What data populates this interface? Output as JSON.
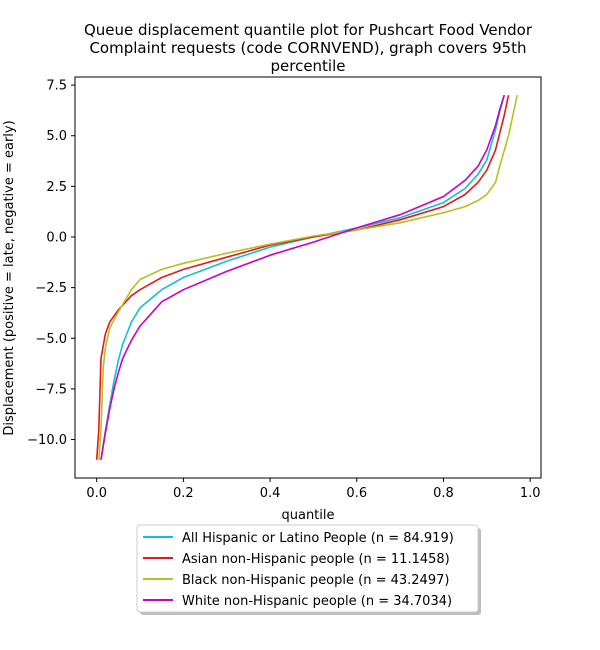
{
  "chart_data": {
    "type": "line",
    "title_lines": [
      "Queue displacement quantile plot for Pushcart Food Vendor",
      "Complaint  requests (code CORNVEND), graph covers 95th",
      "percentile"
    ],
    "xlabel": "quantile",
    "ylabel": "Displacement (positive = late, negative = early)",
    "xlim": [
      -0.05,
      1.025
    ],
    "ylim": [
      -11.9,
      7.9
    ],
    "x_ticks": [
      0.0,
      0.2,
      0.4,
      0.6,
      0.8,
      1.0
    ],
    "x_tick_labels": [
      "0.0",
      "0.2",
      "0.4",
      "0.6",
      "0.8",
      "1.0"
    ],
    "y_ticks": [
      -10.0,
      -7.5,
      -5.0,
      -2.5,
      0.0,
      2.5,
      5.0,
      7.5
    ],
    "y_tick_labels": [
      "−10.0",
      "−7.5",
      "−5.0",
      "−2.5",
      "0.0",
      "2.5",
      "5.0",
      "7.5"
    ],
    "grid": false,
    "legend_position": "below",
    "series": [
      {
        "name": "All Hispanic or Latino People (n = 84.919)",
        "color": "#17becf",
        "x": [
          0.01,
          0.02,
          0.03,
          0.04,
          0.05,
          0.06,
          0.08,
          0.1,
          0.15,
          0.2,
          0.3,
          0.4,
          0.5,
          0.6,
          0.7,
          0.8,
          0.85,
          0.88,
          0.9,
          0.92,
          0.93,
          0.94
        ],
        "y": [
          -11.0,
          -9.6,
          -8.3,
          -7.1,
          -6.1,
          -5.3,
          -4.2,
          -3.5,
          -2.6,
          -2.0,
          -1.2,
          -0.5,
          0.0,
          0.45,
          0.95,
          1.7,
          2.4,
          3.1,
          3.8,
          5.3,
          6.2,
          7.0
        ]
      },
      {
        "name": "Asian non-Hispanic people (n = 11.1458)",
        "color": "#e31a1c",
        "x": [
          0.0,
          0.005,
          0.01,
          0.02,
          0.03,
          0.05,
          0.08,
          0.1,
          0.15,
          0.2,
          0.3,
          0.4,
          0.5,
          0.6,
          0.7,
          0.8,
          0.85,
          0.88,
          0.9,
          0.92,
          0.94,
          0.95
        ],
        "y": [
          -11.0,
          -9.5,
          -6.0,
          -4.8,
          -4.2,
          -3.6,
          -2.9,
          -2.6,
          -2.0,
          -1.6,
          -1.0,
          -0.4,
          0.0,
          0.35,
          0.85,
          1.5,
          2.1,
          2.7,
          3.3,
          4.3,
          6.0,
          7.0
        ]
      },
      {
        "name": "Black non-Hispanic people (n = 43.2497)",
        "color": "#bcbd22",
        "x": [
          0.005,
          0.01,
          0.015,
          0.02,
          0.03,
          0.05,
          0.08,
          0.1,
          0.15,
          0.2,
          0.3,
          0.4,
          0.5,
          0.6,
          0.7,
          0.8,
          0.85,
          0.88,
          0.9,
          0.92,
          0.93,
          0.95,
          0.97
        ],
        "y": [
          -11.0,
          -9.5,
          -6.5,
          -5.5,
          -4.5,
          -3.7,
          -2.6,
          -2.1,
          -1.6,
          -1.3,
          -0.8,
          -0.35,
          0.05,
          0.35,
          0.7,
          1.2,
          1.5,
          1.8,
          2.1,
          2.7,
          3.5,
          5.0,
          7.0
        ]
      },
      {
        "name": "White non-Hispanic people (n = 34.7034)",
        "color": "#c800c8",
        "x": [
          0.01,
          0.02,
          0.03,
          0.04,
          0.05,
          0.06,
          0.08,
          0.1,
          0.15,
          0.2,
          0.3,
          0.4,
          0.5,
          0.6,
          0.7,
          0.8,
          0.85,
          0.88,
          0.9,
          0.92,
          0.93,
          0.94
        ],
        "y": [
          -11.0,
          -9.7,
          -8.5,
          -7.5,
          -6.7,
          -6.0,
          -5.1,
          -4.4,
          -3.2,
          -2.6,
          -1.7,
          -0.9,
          -0.25,
          0.45,
          1.1,
          2.0,
          2.8,
          3.5,
          4.3,
          5.5,
          6.3,
          7.0
        ]
      }
    ]
  }
}
